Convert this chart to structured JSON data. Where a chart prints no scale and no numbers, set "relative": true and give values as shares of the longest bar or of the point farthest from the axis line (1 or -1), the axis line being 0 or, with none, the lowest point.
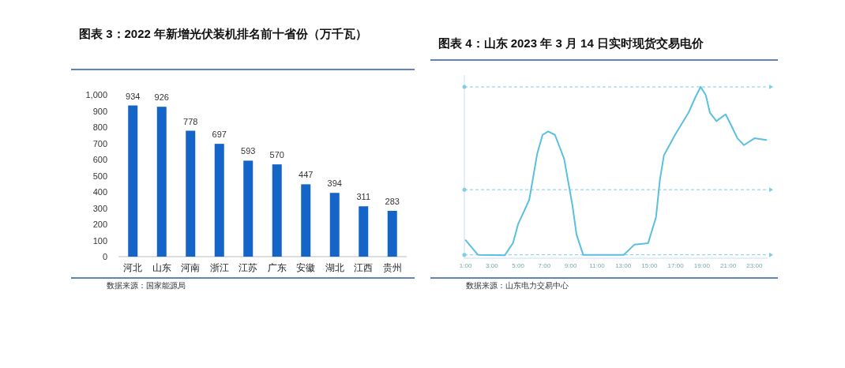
{
  "chart_data": [
    {
      "type": "bar",
      "title": "图表 3：2022 年新增光伏装机排名前十省份（万千瓦）",
      "categories": [
        "河北",
        "山东",
        "河南",
        "浙江",
        "江苏",
        "广东",
        "安徽",
        "湖北",
        "江西",
        "贵州"
      ],
      "values": [
        934,
        926,
        778,
        697,
        593,
        570,
        447,
        394,
        311,
        283
      ],
      "color": "#1565c8",
      "ylim": [
        0,
        1000
      ],
      "yticks": [
        0,
        100,
        200,
        300,
        400,
        500,
        600,
        700,
        800,
        900,
        {
          "value": 1000,
          "label": "1,000"
        }
      ],
      "data_labels": true,
      "annotations": [
        "数据来源：国家能源局"
      ]
    },
    {
      "type": "line",
      "title": "图表 4：山东 2023 年 3 月 14 日实时现货交易电价",
      "relative": true,
      "color": "#5bbfe0",
      "x": [
        1,
        1.93,
        3.98,
        4.6,
        5.0,
        5.84,
        6.45,
        6.86,
        7.28,
        7.8,
        8.5,
        9.13,
        9.44,
        9.95,
        13.04,
        13.86,
        14.9,
        15.5,
        15.8,
        16.1,
        16.95,
        17.98,
        18.5,
        18.9,
        19.3,
        19.6,
        20.1,
        20.8,
        21.2,
        21.7,
        22.2,
        23.0,
        23.9
      ],
      "values": [
        0.105,
        0.02,
        0.017,
        0.088,
        0.2,
        0.34,
        0.61,
        0.72,
        0.74,
        0.72,
        0.58,
        0.31,
        0.14,
        0.02,
        0.02,
        0.08,
        0.088,
        0.24,
        0.46,
        0.6,
        0.72,
        0.85,
        0.94,
        1.0,
        0.95,
        0.85,
        0.8,
        0.84,
        0.78,
        0.7,
        0.66,
        0.7,
        0.69
      ],
      "xlim": [
        0.9,
        24
      ],
      "xticks": [
        {
          "value": 1,
          "label": "1:00"
        },
        {
          "value": 3,
          "label": "3:00"
        },
        {
          "value": 5,
          "label": "5:00"
        },
        {
          "value": 7,
          "label": "7:00"
        },
        {
          "value": 9,
          "label": "9:00"
        },
        {
          "value": 11,
          "label": "11:00"
        },
        {
          "value": 13,
          "label": "13:00"
        },
        {
          "value": 15,
          "label": "15:00"
        },
        {
          "value": 17,
          "label": "17:00"
        },
        {
          "value": 19,
          "label": "19:00"
        },
        {
          "value": 21,
          "label": "21:00"
        },
        {
          "value": 23,
          "label": "23:00"
        }
      ],
      "ref_lines": [
        {
          "axis": "y",
          "value": 1.0,
          "color": "#7fcde8",
          "line_style": "dashed"
        },
        {
          "axis": "y",
          "value": 0.4,
          "color": "#7fcde8",
          "line_style": "dashed"
        },
        {
          "axis": "y",
          "value": 0.02,
          "color": "#7fcde8",
          "line_style": "dashed"
        }
      ],
      "annotations": [
        "数据来源：山东电力交易中心"
      ]
    }
  ]
}
